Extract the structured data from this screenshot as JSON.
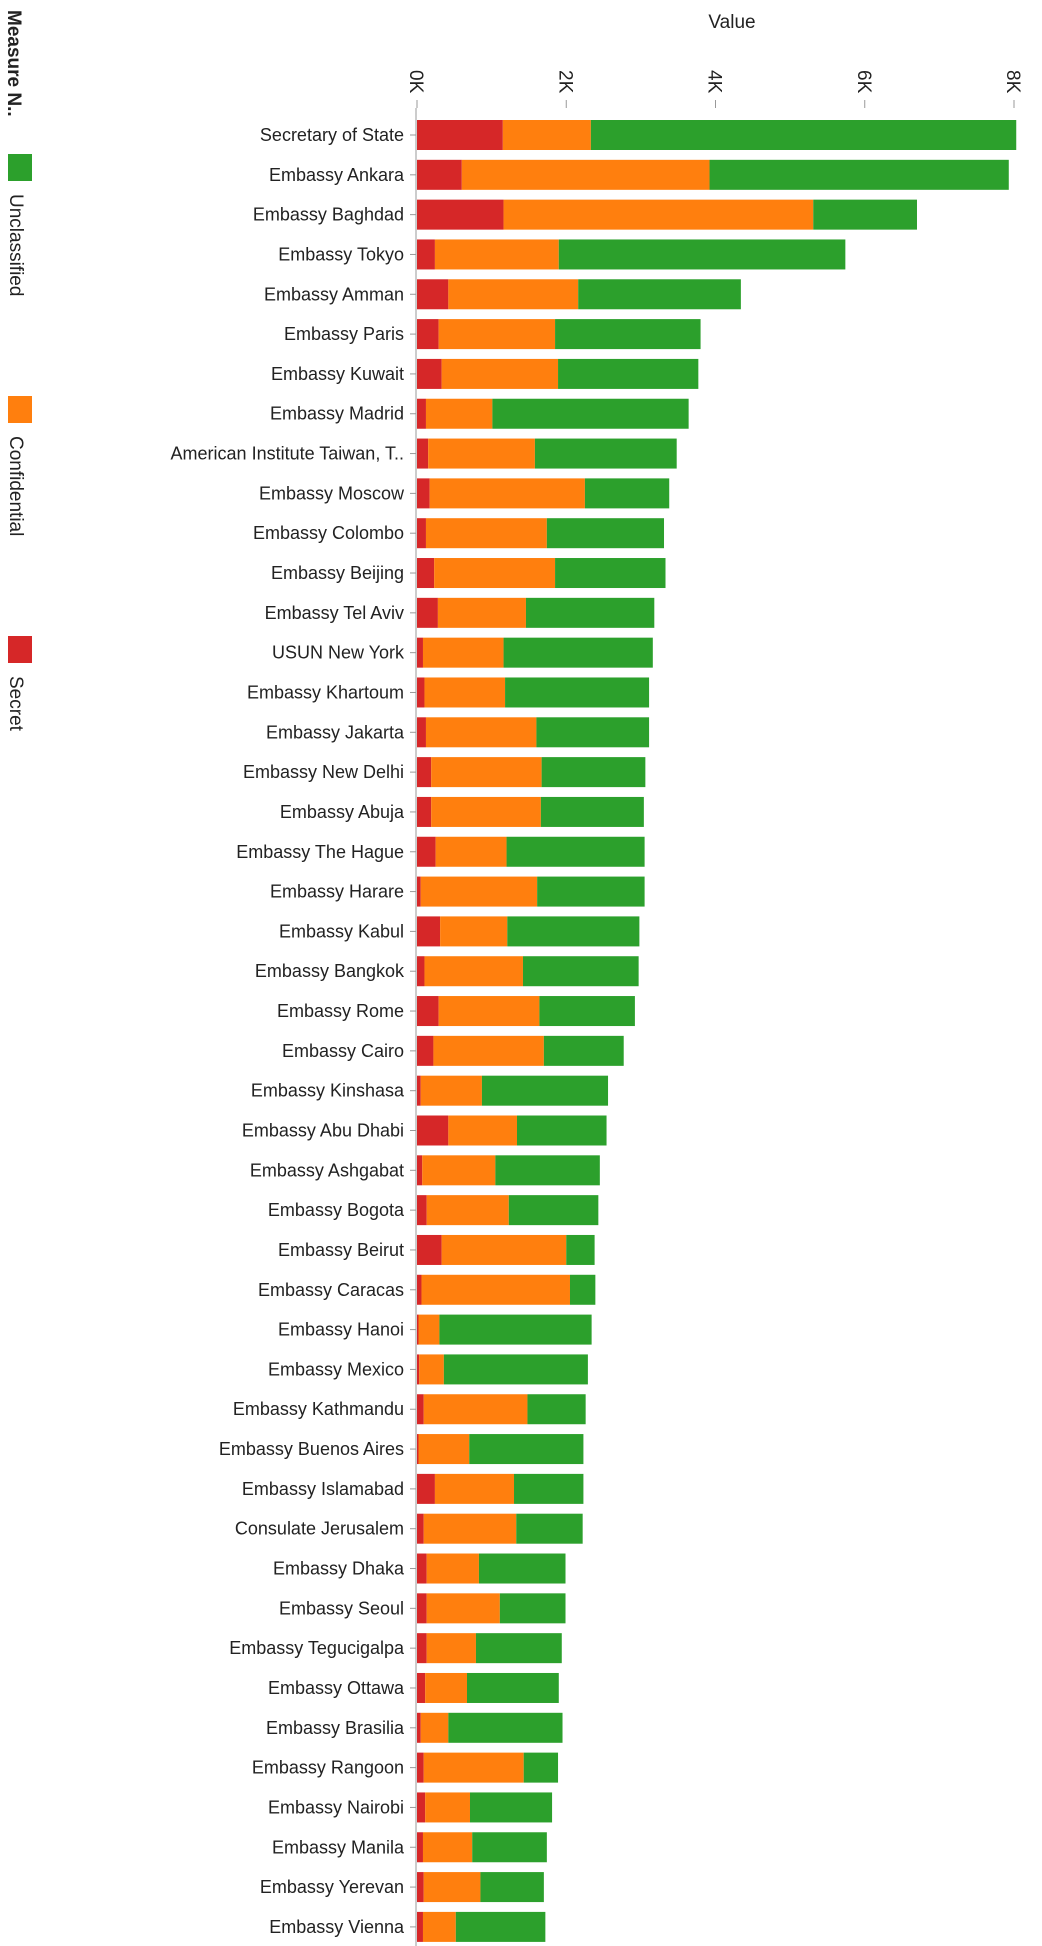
{
  "chart_data": {
    "type": "bar",
    "orientation": "horizontal",
    "stacked": true,
    "xlabel": "Value",
    "xlim": [
      0,
      8000
    ],
    "x_ticks": [
      0,
      2000,
      4000,
      6000,
      8000
    ],
    "x_tick_labels": [
      "0K",
      "2K",
      "4K",
      "6K",
      "8K"
    ],
    "grid": false,
    "legend": {
      "title": "Measure N..",
      "placement": "left",
      "entries": [
        "Unclassified",
        "Confidential",
        "Secret"
      ]
    },
    "colors": {
      "Unclassified": "#2ca02c",
      "Confidential": "#ff7f0e",
      "Secret": "#d62728"
    },
    "categories": [
      "Secretary of State",
      "Embassy Ankara",
      "Embassy Baghdad",
      "Embassy Tokyo",
      "Embassy Amman",
      "Embassy Paris",
      "Embassy Kuwait",
      "Embassy Madrid",
      "American Institute Taiwan, T..",
      "Embassy Moscow",
      "Embassy Colombo",
      "Embassy Beijing",
      "Embassy Tel Aviv",
      "USUN New York",
      "Embassy Khartoum",
      "Embassy Jakarta",
      "Embassy New Delhi",
      "Embassy Abuja",
      "Embassy The Hague",
      "Embassy Harare",
      "Embassy Kabul",
      "Embassy Bangkok",
      "Embassy Rome",
      "Embassy Cairo",
      "Embassy Kinshasa",
      "Embassy Abu Dhabi",
      "Embassy Ashgabat",
      "Embassy Bogota",
      "Embassy Beirut",
      "Embassy Caracas",
      "Embassy Hanoi",
      "Embassy Mexico",
      "Embassy Kathmandu",
      "Embassy Buenos Aires",
      "Embassy Islamabad",
      "Consulate Jerusalem",
      "Embassy Dhaka",
      "Embassy Seoul",
      "Embassy Tegucigalpa",
      "Embassy Ottawa",
      "Embassy Brasilia",
      "Embassy Rangoon",
      "Embassy Nairobi",
      "Embassy Manila",
      "Embassy Yerevan",
      "Embassy Vienna"
    ],
    "series": [
      {
        "name": "Secret",
        "values": [
          1150,
          600,
          1160,
          240,
          420,
          290,
          330,
          120,
          150,
          170,
          120,
          230,
          280,
          80,
          100,
          120,
          190,
          190,
          250,
          50,
          310,
          100,
          290,
          220,
          50,
          420,
          70,
          130,
          330,
          60,
          20,
          30,
          90,
          20,
          240,
          90,
          130,
          130,
          130,
          110,
          50,
          90,
          110,
          80,
          90,
          80
        ]
      },
      {
        "name": "Confidential",
        "values": [
          1180,
          3320,
          4150,
          1660,
          1740,
          1560,
          1560,
          890,
          1430,
          2080,
          1620,
          1620,
          1180,
          1080,
          1080,
          1480,
          1480,
          1470,
          950,
          1560,
          900,
          1320,
          1350,
          1480,
          820,
          920,
          980,
          1100,
          1670,
          1990,
          280,
          330,
          1390,
          680,
          1060,
          1240,
          700,
          980,
          660,
          560,
          370,
          1340,
          600,
          660,
          760,
          440
        ]
      },
      {
        "name": "Unclassified",
        "values": [
          5700,
          4010,
          1390,
          3840,
          2180,
          1950,
          1880,
          2630,
          1900,
          1130,
          1570,
          1480,
          1720,
          2000,
          1930,
          1510,
          1390,
          1380,
          1850,
          1440,
          1770,
          1550,
          1280,
          1070,
          1690,
          1200,
          1400,
          1200,
          380,
          340,
          2040,
          1930,
          780,
          1530,
          930,
          890,
          1160,
          880,
          1150,
          1230,
          1530,
          460,
          1100,
          1000,
          850,
          1200
        ]
      }
    ]
  }
}
